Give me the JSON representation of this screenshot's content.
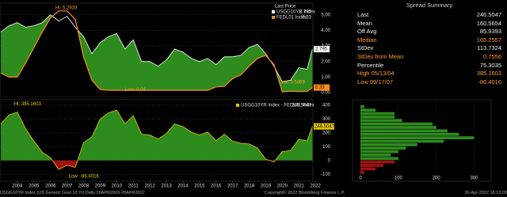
{
  "chart_data": [
    {
      "type": "line",
      "legend_title": "Last Price",
      "x": [
        2003.5,
        2004.0,
        2004.5,
        2005.0,
        2005.5,
        2006.0,
        2006.5,
        2007.0,
        2007.5,
        2008.0,
        2008.5,
        2009.0,
        2009.5,
        2010.0,
        2010.5,
        2011.0,
        2011.5,
        2012.0,
        2012.5,
        2013.0,
        2013.5,
        2014.0,
        2014.5,
        2015.0,
        2015.5,
        2016.0,
        2016.5,
        2017.0,
        2017.5,
        2018.0,
        2018.5,
        2019.0,
        2019.5,
        2020.0,
        2020.5,
        2021.0,
        2021.5,
        2022.0,
        2022.32
      ],
      "series": [
        {
          "name": "USGG10YR Index",
          "last_label": "2.795",
          "color": "#ffffff",
          "values": [
            3.9,
            4.3,
            4.5,
            4.2,
            4.3,
            4.5,
            5.0,
            4.6,
            4.9,
            4.2,
            3.6,
            2.5,
            3.2,
            3.6,
            3.8,
            2.8,
            3.4,
            2.0,
            2.0,
            1.7,
            2.1,
            2.8,
            2.6,
            2.2,
            2.0,
            2.2,
            1.8,
            2.3,
            2.3,
            2.4,
            2.9,
            3.1,
            2.5,
            1.7,
            0.7,
            0.8,
            1.6,
            1.5,
            2.795
          ]
        },
        {
          "name": "FEDL01 Index",
          "last_label": "0.33",
          "color": "#ff8c1a",
          "values": [
            1.25,
            1.0,
            1.0,
            1.9,
            2.9,
            3.9,
            4.8,
            5.25,
            5.25,
            4.7,
            2.3,
            0.8,
            0.2,
            0.15,
            0.15,
            0.15,
            0.15,
            0.15,
            0.15,
            0.15,
            0.15,
            0.15,
            0.15,
            0.15,
            0.15,
            0.15,
            0.37,
            0.4,
            0.9,
            1.15,
            1.7,
            2.2,
            2.4,
            1.8,
            0.05,
            0.09,
            0.07,
            0.08,
            0.33
          ]
        }
      ],
      "annotations": [
        {
          "text": "Hi: 5.2928",
          "x": 2006.8,
          "y": 5.29
        },
        {
          "text": "Low: 0.04",
          "x": 2011.0,
          "y": 0.04
        },
        {
          "text": "Low: 0.5069",
          "x": 2020.3,
          "y": 0.5069
        }
      ],
      "xlim": [
        2003.45,
        2022.35
      ],
      "ylim": [
        -0.25,
        5.75
      ],
      "yticks": [
        {
          "value": 0,
          "label": "0.00"
        },
        {
          "value": 1,
          "label": "1.00"
        },
        {
          "value": 2,
          "label": "2.00"
        },
        {
          "value": 3,
          "label": "3.00"
        },
        {
          "value": 4,
          "label": "4.00"
        },
        {
          "value": 5,
          "label": "5.00"
        }
      ],
      "grid": true,
      "fill_color": "#2e8b1e"
    },
    {
      "type": "area",
      "series": [
        {
          "name": "USGG10YR Index - FEDL01 Index",
          "last_label": "246.5047",
          "color": "#e8c800",
          "values": [
            265,
            330,
            350,
            230,
            140,
            60,
            20,
            -65,
            -35,
            -50,
            130,
            170,
            300,
            345,
            365,
            265,
            325,
            190,
            185,
            155,
            195,
            265,
            245,
            205,
            185,
            205,
            143,
            190,
            140,
            125,
            120,
            90,
            10,
            -10,
            65,
            71,
            153,
            142,
            246.5047
          ]
        }
      ],
      "annotations": [
        {
          "text": "Hi: 385.1603",
          "x": 2004.3,
          "y": 385.1603
        },
        {
          "text": "Low: -86.4016",
          "x": 2007.6,
          "y": -86.4016
        }
      ],
      "xlim": [
        2003.45,
        2022.35
      ],
      "ylim": [
        -150,
        440
      ],
      "yticks": [
        -100,
        0,
        100,
        200,
        300,
        400
      ],
      "grid": true,
      "positive_color": "#2e8b1e",
      "negative_color": "#a01010",
      "xticks": [
        {
          "value": 2004.5,
          "label": "2004"
        },
        {
          "value": 2005.5,
          "label": "2005"
        },
        {
          "value": 2006.5,
          "label": "2006"
        },
        {
          "value": 2007.5,
          "label": "2007"
        },
        {
          "value": 2008.5,
          "label": "2008"
        },
        {
          "value": 2009.5,
          "label": "2009"
        },
        {
          "value": 2010.5,
          "label": "2010"
        },
        {
          "value": 2011.5,
          "label": "2011"
        },
        {
          "value": 2012.5,
          "label": "2012"
        },
        {
          "value": 2013.5,
          "label": "2013"
        },
        {
          "value": 2014.5,
          "label": "2014"
        },
        {
          "value": 2015.5,
          "label": "2015"
        },
        {
          "value": 2016.5,
          "label": "2016"
        },
        {
          "value": 2017.5,
          "label": "2017"
        },
        {
          "value": 2018.5,
          "label": "2018"
        },
        {
          "value": 2019.5,
          "label": "2019"
        },
        {
          "value": 2020.5,
          "label": "2020"
        },
        {
          "value": 2021.5,
          "label": "2021"
        },
        {
          "value": 2022.5,
          "label": "2022"
        }
      ]
    },
    {
      "type": "histogram",
      "orientation": "horizontal",
      "bins": [
        -100,
        -75,
        -50,
        -25,
        0,
        25,
        50,
        75,
        100,
        125,
        150,
        175,
        200,
        225,
        250,
        275,
        300,
        325,
        350,
        375,
        400
      ],
      "values": [
        10,
        40,
        60,
        90,
        100,
        80,
        100,
        120,
        150,
        220,
        300,
        260,
        230,
        200,
        190,
        110,
        90,
        90,
        40,
        10
      ],
      "xlim": [
        0,
        345
      ],
      "xticks": [
        0,
        100,
        200,
        300
      ],
      "ylim": [
        -150,
        440
      ],
      "positive_color": "#2e8b1e",
      "negative_color": "#a01010"
    }
  ],
  "summary": {
    "title": "Spread Summary",
    "rows": [
      {
        "label": "Last",
        "value": "246.5047",
        "color": "#eeeeee"
      },
      {
        "label": "Mean",
        "value": "160.5654",
        "color": "#eeeeee"
      },
      {
        "label": "Off Avg",
        "value": "85.9393",
        "color": "#eeeeee"
      },
      {
        "label": "Median",
        "value": "165.2557",
        "color": "#ff9a2e"
      },
      {
        "label": "StDev",
        "value": "113.7324",
        "color": "#eeeeee"
      },
      {
        "label": "StDev from Mean",
        "value": "0.7556",
        "color": "#ff9a2e"
      },
      {
        "label": "Percentile",
        "value": "75.3035",
        "color": "#eeeeee"
      },
      {
        "label": "High 05/13/04",
        "value": "385.1603",
        "color": "#ff9a2e"
      },
      {
        "label": "Low 09/17/07",
        "value": "-86.4016",
        "color": "#ff9a2e"
      }
    ]
  },
  "footer": {
    "left": "USGG10YR Index (US Generic Govt 10 Yr) Daily 26APR2003-26APR2022",
    "center": "Copyright© 2022 Bloomberg Finance L.P.",
    "right": "26-Apr-2022 18:13:03"
  }
}
